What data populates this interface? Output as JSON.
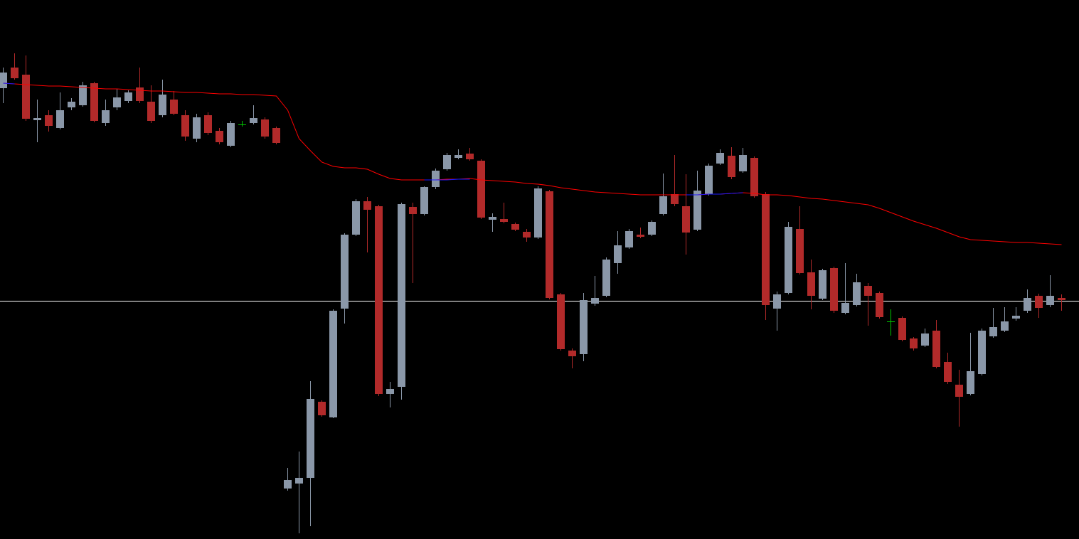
{
  "chart_data": {
    "type": "candlestick",
    "ylim": [
      0,
      758
    ],
    "up_color": "#8a97a8",
    "down_color": "#b22a2a",
    "doji_color": "#00c800",
    "background": "#000000",
    "open": [
      634,
      663,
      653,
      589,
      596,
      578,
      607,
      610,
      641,
      585,
      607,
      616,
      635,
      615,
      596,
      618,
      596,
      563,
      596,
      574,
      553,
      583,
      585,
      590,
      578,
      71,
      78,
      86,
      193,
      171,
      324,
      428,
      475,
      468,
      204,
      214,
      467,
      457,
      495,
      520,
      536,
      542,
      532,
      449,
      450,
      443,
      432,
      424,
      489,
      344,
      265,
      260,
      331,
      342,
      388,
      410,
      428,
      428,
      457,
      485,
      468,
      435,
      485,
      528,
      539,
      517,
      536,
      485,
      324,
      346,
      436,
      375,
      338,
      381,
      318,
      329,
      356,
      346,
      306,
      311,
      282,
      272,
      293,
      249,
      217,
      204,
      232,
      285,
      293,
      310,
      321,
      342,
      329,
      339
    ],
    "high": [
      663,
      683,
      680,
      618,
      603,
      628,
      620,
      643,
      643,
      618,
      633,
      631,
      663,
      638,
      646,
      630,
      603,
      598,
      600,
      578,
      588,
      588,
      610,
      593,
      580,
      100,
      123,
      222,
      195,
      323,
      430,
      478,
      481,
      470,
      221,
      473,
      473,
      496,
      521,
      543,
      548,
      550,
      534,
      458,
      473,
      445,
      436,
      496,
      491,
      346,
      268,
      346,
      370,
      396,
      433,
      436,
      438,
      448,
      514,
      540,
      513,
      518,
      528,
      548,
      551,
      550,
      538,
      488,
      348,
      446,
      468,
      393,
      380,
      383,
      388,
      373,
      360,
      348,
      323,
      313,
      284,
      296,
      308,
      262,
      238,
      290,
      296,
      325,
      326,
      326,
      351,
      345,
      371,
      344
    ],
    "low": [
      613,
      646,
      588,
      558,
      573,
      576,
      603,
      608,
      586,
      581,
      603,
      613,
      613,
      585,
      593,
      596,
      560,
      558,
      568,
      555,
      551,
      580,
      583,
      563,
      555,
      68,
      8,
      18,
      172,
      170,
      303,
      426,
      403,
      201,
      185,
      196,
      360,
      455,
      492,
      518,
      534,
      532,
      450,
      432,
      444,
      433,
      418,
      422,
      337,
      265,
      240,
      250,
      328,
      340,
      373,
      408,
      423,
      426,
      455,
      468,
      400,
      433,
      483,
      526,
      506,
      515,
      480,
      308,
      293,
      344,
      372,
      323,
      336,
      318,
      316,
      327,
      300,
      310,
      286,
      278,
      265,
      270,
      240,
      218,
      158,
      202,
      230,
      283,
      291,
      307,
      318,
      311,
      326,
      321
    ],
    "close": [
      656,
      648,
      591,
      592,
      581,
      603,
      615,
      638,
      588,
      603,
      621,
      628,
      616,
      588,
      625,
      598,
      566,
      593,
      571,
      558,
      585,
      583,
      592,
      566,
      557,
      83,
      86,
      197,
      174,
      321,
      428,
      475,
      463,
      204,
      211,
      471,
      457,
      495,
      518,
      540,
      540,
      534,
      452,
      453,
      446,
      435,
      424,
      493,
      339,
      267,
      257,
      336,
      339,
      393,
      413,
      433,
      425,
      446,
      482,
      471,
      431,
      490,
      525,
      543,
      509,
      540,
      482,
      329,
      344,
      439,
      374,
      342,
      378,
      321,
      332,
      361,
      342,
      312,
      306,
      280,
      268,
      289,
      242,
      221,
      200,
      236,
      293,
      298,
      306,
      314,
      339,
      325,
      342,
      336
    ],
    "lines": [
      {
        "color": "#ff0000",
        "values": [
          641,
          640,
          639,
          638,
          637,
          637,
          636,
          635,
          634,
          633,
          633,
          632,
          631,
          630,
          630,
          629,
          628,
          628,
          627,
          626,
          626,
          625,
          625,
          624,
          623,
          603,
          563,
          546,
          530,
          524,
          522,
          522,
          520,
          513,
          507,
          505,
          505,
          505,
          505,
          506,
          506,
          507,
          505,
          504,
          503,
          502,
          500,
          499,
          497,
          494,
          492,
          490,
          488,
          487,
          486,
          485,
          484,
          484,
          484,
          484,
          484,
          484,
          485,
          485,
          486,
          487,
          486,
          484,
          484,
          483,
          481,
          479,
          478,
          476,
          474,
          472,
          470,
          465,
          459,
          453,
          447,
          442,
          437,
          431,
          425,
          421,
          420,
          419,
          418,
          417,
          417,
          416,
          415,
          414
        ]
      },
      {
        "color": "#1a1aff",
        "values": [
          641,
          640,
          null,
          null,
          null,
          null,
          null,
          null,
          null,
          null,
          null,
          null,
          null,
          null,
          null,
          null,
          null,
          null,
          null,
          null,
          null,
          null,
          null,
          null,
          null,
          null,
          null,
          null,
          null,
          null,
          null,
          null,
          null,
          null,
          null,
          null,
          null,
          505,
          505,
          505,
          506,
          506,
          null,
          null,
          null,
          null,
          null,
          null,
          null,
          null,
          null,
          null,
          null,
          null,
          null,
          null,
          null,
          null,
          null,
          null,
          484,
          484,
          485,
          485,
          486,
          487,
          null,
          null,
          null,
          null,
          null,
          null,
          null,
          null,
          null,
          null,
          null,
          null,
          null,
          null,
          null,
          null,
          null,
          null,
          null,
          null,
          null,
          null,
          null,
          null,
          null,
          null,
          null,
          null
        ]
      }
    ],
    "price_line": {
      "value": 335,
      "color": "#ffffff"
    }
  }
}
